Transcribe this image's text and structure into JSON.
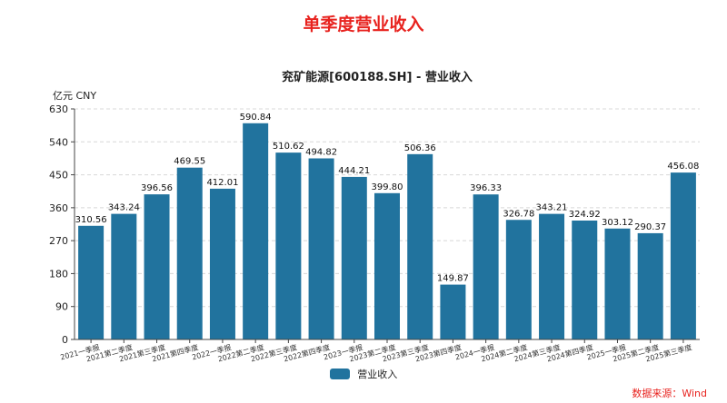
{
  "page": {
    "headline": "单季度营业收入",
    "source": "数据来源：Wind"
  },
  "colors": {
    "bar": "#21739e",
    "headline": "#e8231f",
    "grid": "#d8d8d8"
  },
  "chart_data": {
    "type": "bar",
    "title": "兖矿能源[600188.SH] - 营业收入",
    "unit_label": "亿元  CNY",
    "ylim": [
      0,
      630
    ],
    "yticks": [
      0,
      90,
      180,
      270,
      360,
      450,
      540,
      630
    ],
    "grid": "horizontal-dashed",
    "legend_position": "bottom",
    "categories": [
      "2021一季报",
      "2021第二季度",
      "2021第三季度",
      "2021第四季度",
      "2022一季报",
      "2022第二季度",
      "2022第三季度",
      "2022第四季度",
      "2023一季报",
      "2023第二季度",
      "2023第三季度",
      "2023第四季度",
      "2024一季报",
      "2024第二季度",
      "2024第三季度",
      "2024第四季度",
      "2025一季报",
      "2025第二季度",
      "2025第三季度"
    ],
    "series": [
      {
        "name": "营业收入",
        "values": [
          310.56,
          343.24,
          396.56,
          469.55,
          412.01,
          590.84,
          510.62,
          494.82,
          444.21,
          399.8,
          506.36,
          149.87,
          396.33,
          326.78,
          343.21,
          324.92,
          303.12,
          290.37,
          456.08
        ],
        "labels": [
          "310.56",
          "343.24",
          "396.56",
          "469.55",
          "412.01",
          "590.84",
          "510.62",
          "494.82",
          "444.21",
          "399.80",
          "506.36",
          "149.87",
          "396.33",
          "326.78",
          "343.21",
          "324.92",
          "303.12",
          "290.37",
          "456.08"
        ]
      }
    ]
  }
}
